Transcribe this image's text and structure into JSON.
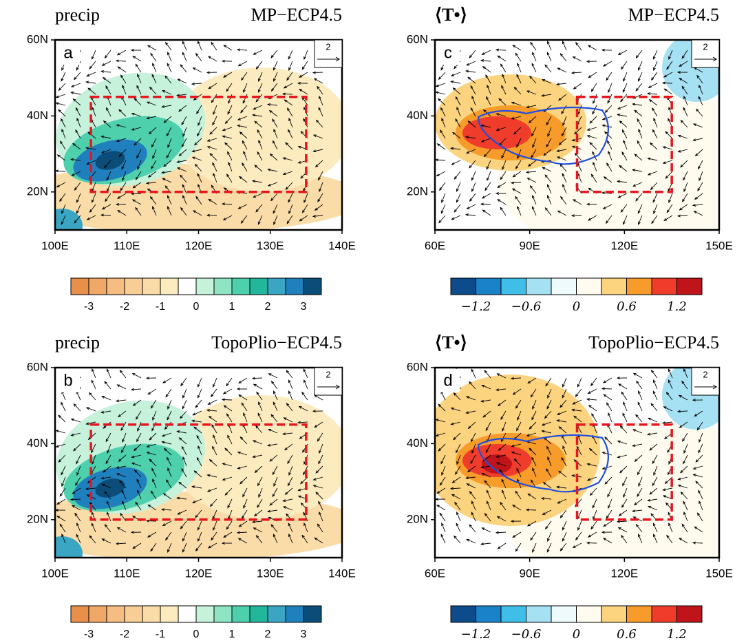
{
  "panels": [
    {
      "letter": "a",
      "left_title": "precip",
      "right_title": "MP−ECP4.5",
      "ref_vector": "2",
      "xlim": [
        100,
        140
      ],
      "ylim": [
        10,
        60
      ],
      "xticks": [
        {
          "value": 100,
          "label": "100E"
        },
        {
          "value": 110,
          "label": "110E"
        },
        {
          "value": 120,
          "label": "120E"
        },
        {
          "value": 130,
          "label": "130E"
        },
        {
          "value": 140,
          "label": "140E"
        }
      ],
      "yticks": [
        {
          "value": 20,
          "label": "20N"
        },
        {
          "value": 40,
          "label": "40N"
        },
        {
          "value": 60,
          "label": "60N"
        }
      ],
      "box": {
        "lon": [
          105,
          135
        ],
        "lat": [
          20,
          45
        ]
      },
      "colorbar": {
        "colors": [
          "#e8904a",
          "#f0a868",
          "#f5bd82",
          "#f8cd96",
          "#fadca8",
          "#fdebc0",
          "#ffffff",
          "#c6f2dc",
          "#8fe4c4",
          "#4fd0ad",
          "#22b79a",
          "#3aa6c4",
          "#1f80bd",
          "#0c4c78"
        ],
        "ticks": [
          {
            "value": 1,
            "label": "-3"
          },
          {
            "value": 3,
            "label": "-2"
          },
          {
            "value": 5,
            "label": "-1"
          },
          {
            "value": 7,
            "label": "0"
          },
          {
            "value": 9,
            "label": "1"
          },
          {
            "value": 11,
            "label": "2"
          },
          {
            "value": 13,
            "label": "3"
          }
        ]
      }
    },
    {
      "letter": "b",
      "left_title": "precip",
      "right_title": "TopoPlio−ECP4.5",
      "ref_vector": "2",
      "xlim": [
        100,
        140
      ],
      "ylim": [
        10,
        60
      ],
      "xticks": [
        {
          "value": 100,
          "label": "100E"
        },
        {
          "value": 110,
          "label": "110E"
        },
        {
          "value": 120,
          "label": "120E"
        },
        {
          "value": 130,
          "label": "130E"
        },
        {
          "value": 140,
          "label": "140E"
        }
      ],
      "yticks": [
        {
          "value": 20,
          "label": "20N"
        },
        {
          "value": 40,
          "label": "40N"
        },
        {
          "value": 60,
          "label": "60N"
        }
      ],
      "box": {
        "lon": [
          105,
          135
        ],
        "lat": [
          20,
          45
        ]
      },
      "colorbar": {
        "colors": [
          "#e8904a",
          "#f0a868",
          "#f5bd82",
          "#f8cd96",
          "#fadca8",
          "#fdebc0",
          "#ffffff",
          "#c6f2dc",
          "#8fe4c4",
          "#4fd0ad",
          "#22b79a",
          "#3aa6c4",
          "#1f80bd",
          "#0c4c78"
        ],
        "ticks": [
          {
            "value": 1,
            "label": "-3"
          },
          {
            "value": 3,
            "label": "-2"
          },
          {
            "value": 5,
            "label": "-1"
          },
          {
            "value": 7,
            "label": "0"
          },
          {
            "value": 9,
            "label": "1"
          },
          {
            "value": 11,
            "label": "2"
          },
          {
            "value": 13,
            "label": "3"
          }
        ]
      }
    },
    {
      "letter": "c",
      "left_title": "⟨T•⟩",
      "right_title": "MP−ECP4.5",
      "ref_vector": "2",
      "xlim": [
        60,
        150
      ],
      "ylim": [
        10,
        60
      ],
      "xticks": [
        {
          "value": 60,
          "label": "60E"
        },
        {
          "value": 90,
          "label": "90E"
        },
        {
          "value": 120,
          "label": "120E"
        },
        {
          "value": 150,
          "label": "150E"
        }
      ],
      "yticks": [
        {
          "value": 20,
          "label": "20N"
        },
        {
          "value": 40,
          "label": "40N"
        },
        {
          "value": 60,
          "label": "60N"
        }
      ],
      "box": {
        "lon": [
          105,
          135
        ],
        "lat": [
          20,
          45
        ]
      },
      "colorbar": {
        "colors": [
          "#0d4b8a",
          "#1a82c9",
          "#3fbfe8",
          "#a6e0f3",
          "#eefafc",
          "#fffbee",
          "#fcd37f",
          "#f79c2a",
          "#f03c2b",
          "#c0141b"
        ],
        "ticks": [
          {
            "value": 1,
            "label": "−1.2"
          },
          {
            "value": 3,
            "label": "−0.6"
          },
          {
            "value": 5,
            "label": "0"
          },
          {
            "value": 7,
            "label": "0.6"
          },
          {
            "value": 9,
            "label": "1.2"
          }
        ]
      }
    },
    {
      "letter": "d",
      "left_title": "⟨T•⟩",
      "right_title": "TopoPlio−ECP4.5",
      "ref_vector": "2",
      "xlim": [
        60,
        150
      ],
      "ylim": [
        10,
        60
      ],
      "xticks": [
        {
          "value": 60,
          "label": "60E"
        },
        {
          "value": 90,
          "label": "90E"
        },
        {
          "value": 120,
          "label": "120E"
        },
        {
          "value": 150,
          "label": "150E"
        }
      ],
      "yticks": [
        {
          "value": 20,
          "label": "20N"
        },
        {
          "value": 40,
          "label": "40N"
        },
        {
          "value": 60,
          "label": "60N"
        }
      ],
      "box": {
        "lon": [
          105,
          135
        ],
        "lat": [
          20,
          45
        ]
      },
      "colorbar": {
        "colors": [
          "#0d4b8a",
          "#1a82c9",
          "#3fbfe8",
          "#a6e0f3",
          "#eefafc",
          "#fffbee",
          "#fcd37f",
          "#f79c2a",
          "#f03c2b",
          "#c0141b"
        ],
        "ticks": [
          {
            "value": 1,
            "label": "−1.2"
          },
          {
            "value": 3,
            "label": "−0.6"
          },
          {
            "value": 5,
            "label": "0"
          },
          {
            "value": 7,
            "label": "0.6"
          },
          {
            "value": 9,
            "label": "1.2"
          }
        ]
      }
    }
  ]
}
